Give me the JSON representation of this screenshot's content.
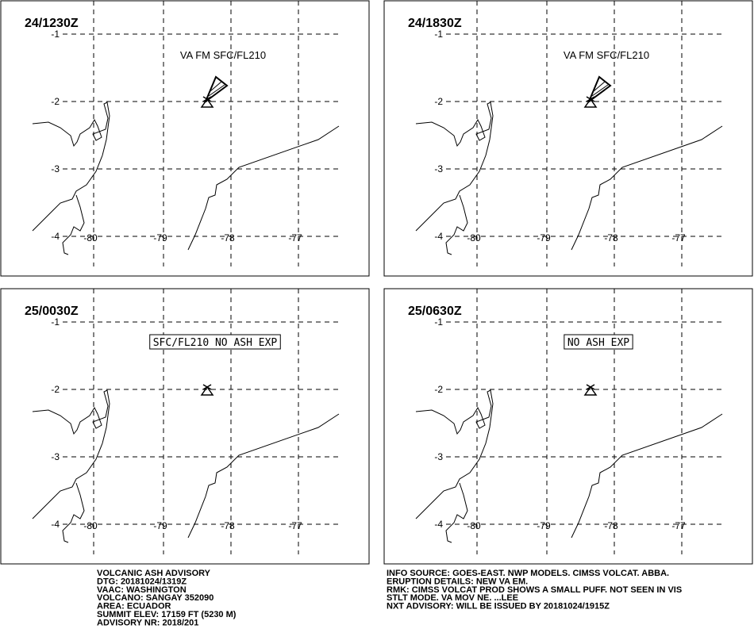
{
  "panels": [
    {
      "time": "24/1230Z",
      "annotation": "VA FM SFC/FL210"
    },
    {
      "time": "24/1830Z",
      "annotation": "VA FM SFC/FL210"
    },
    {
      "time": "25/0030Z",
      "annotation": "SFC/FL210 NO ASH EXP"
    },
    {
      "time": "25/0630Z",
      "annotation": "NO ASH EXP"
    }
  ],
  "grid": {
    "lat_labels": [
      "-1",
      "-2",
      "-3",
      "-4"
    ],
    "lon_labels": [
      "-80",
      "-79",
      "-78",
      "-77"
    ]
  },
  "advisory_left": [
    "VOLCANIC ASH ADVISORY",
    "DTG: 20181024/1319Z",
    "VAAC: WASHINGTON",
    "VOLCANO: SANGAY 352090",
    "AREA: ECUADOR",
    "SUMMIT ELEV: 17159 FT (5230 M)",
    "ADVISORY NR: 2018/201"
  ],
  "advisory_right": [
    "INFO SOURCE: GOES-EAST. NWP MODELS. CIMSS VOLCAT. ABBA.",
    "ERUPTION DETAILS: NEW VA EM.",
    "RMK: CIMSS VOLCAT PROD SHOWS A SMALL PUFF. NOT SEEN IN VIS",
    "STLT MODE. VA MOV NE.   ...LEE",
    "NXT ADVISORY: WILL BE ISSUED BY 20181024/1915Z"
  ]
}
